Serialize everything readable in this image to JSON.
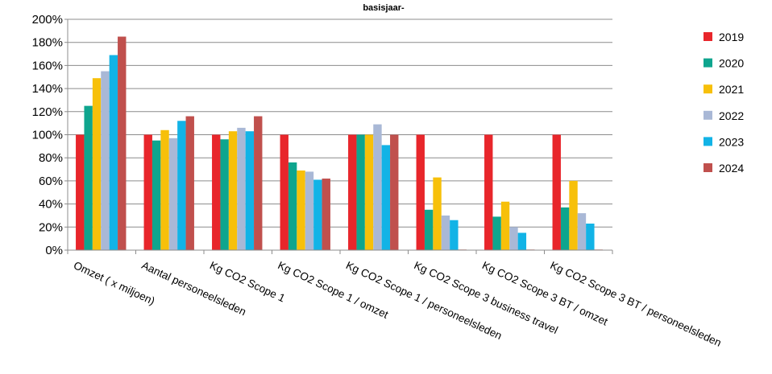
{
  "chart_data": {
    "type": "bar",
    "title": "basisjaar-",
    "xlabel": "",
    "ylabel": "",
    "ylim": [
      0,
      200
    ],
    "y_ticks": [
      "0%",
      "20%",
      "40%",
      "60%",
      "80%",
      "100%",
      "120%",
      "140%",
      "160%",
      "180%",
      "200%"
    ],
    "grid": "horizontal",
    "legend_position": "right",
    "categories": [
      "Omzet ( x miljoen)",
      "Aantal personeelsleden",
      "Kg CO2 Scope 1",
      "Kg CO2 Scope 1 / omzet",
      "Kg CO2 Scope 1 / personeelsleden",
      "Kg CO2 Scope 3 business travel",
      "Kg CO2 Scope 3 BT / omzet",
      "Kg CO2 Scope 3 BT / personeelsleden"
    ],
    "series": [
      {
        "name": "2019",
        "color": "#e8262b",
        "values": [
          100,
          100,
          100,
          100,
          100,
          100,
          100,
          100
        ]
      },
      {
        "name": "2020",
        "color": "#0ea58e",
        "values": [
          125,
          95,
          96,
          76,
          100,
          35,
          29,
          37
        ]
      },
      {
        "name": "2021",
        "color": "#f7c00a",
        "values": [
          149,
          104,
          103,
          69,
          100,
          63,
          42,
          60
        ]
      },
      {
        "name": "2022",
        "color": "#a9b8d6",
        "values": [
          155,
          97,
          106,
          68,
          109,
          30,
          20,
          32
        ]
      },
      {
        "name": "2023",
        "color": "#12b3e6",
        "values": [
          169,
          112,
          103,
          61,
          91,
          26,
          15,
          23
        ]
      },
      {
        "name": "2024",
        "color": "#c0504d",
        "values": [
          185,
          116,
          116,
          62,
          100,
          0.5,
          0.5,
          0.5
        ]
      }
    ]
  }
}
